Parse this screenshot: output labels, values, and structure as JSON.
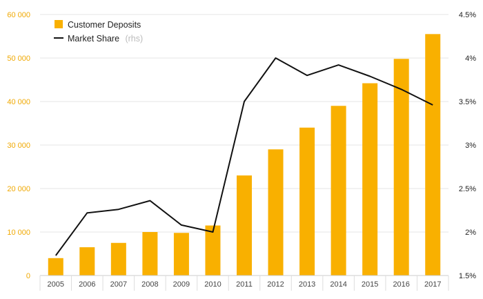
{
  "chart_data": {
    "type": "bar",
    "categories": [
      "2005",
      "2006",
      "2007",
      "2008",
      "2009",
      "2010",
      "2011",
      "2012",
      "2013",
      "2014",
      "2015",
      "2016",
      "2017"
    ],
    "series": [
      {
        "name": "Customer Deposits",
        "type": "bar",
        "axis": "left",
        "color": "#f9b000",
        "values": [
          4000,
          6500,
          7500,
          10000,
          9800,
          11500,
          23000,
          29000,
          34000,
          39000,
          44200,
          49800,
          55500
        ]
      },
      {
        "name": "Market Share",
        "name_suffix": "(rhs)",
        "type": "line",
        "axis": "right",
        "color": "#111111",
        "values": [
          1.73,
          2.22,
          2.26,
          2.36,
          2.08,
          2.0,
          3.5,
          4.0,
          3.8,
          3.92,
          3.79,
          3.64,
          3.46
        ]
      }
    ],
    "y_left": {
      "range": [
        0,
        60000
      ],
      "ticks": [
        0,
        10000,
        20000,
        30000,
        40000,
        50000,
        60000
      ],
      "tick_labels": [
        "0",
        "10 000",
        "20 000",
        "30 000",
        "40 000",
        "50 000",
        "60 000"
      ],
      "tick_color": "#f0a800"
    },
    "y_right": {
      "range": [
        1.5,
        4.5
      ],
      "ticks": [
        1.5,
        2,
        2.5,
        3,
        3.5,
        4,
        4.5
      ],
      "tick_labels": [
        "1.5%",
        "2%",
        "2.5%",
        "3%",
        "3.5%",
        "4%",
        "4.5%"
      ]
    },
    "grid": true,
    "legend_position": "top-left"
  }
}
